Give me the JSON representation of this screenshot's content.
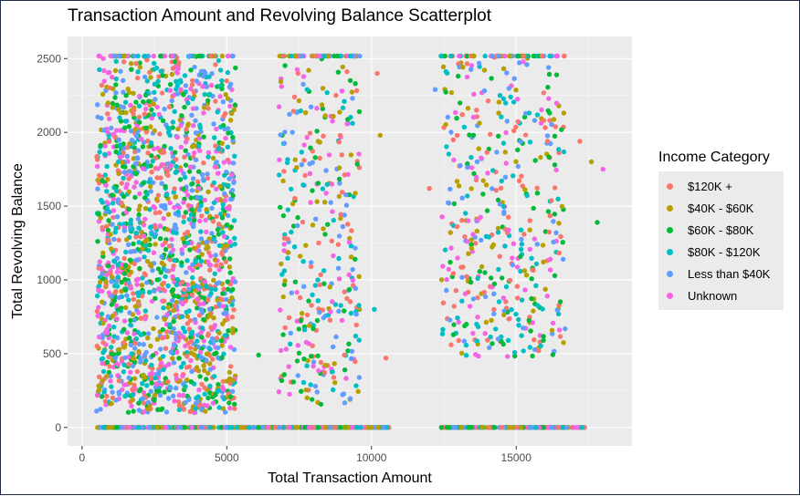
{
  "chart_data": {
    "type": "scatter",
    "title": "Transaction Amount and Revolving Balance Scatterplot",
    "xlabel": "Total Transaction Amount",
    "ylabel": "Total Revolving Balance",
    "xlim": [
      -500,
      19000
    ],
    "ylim": [
      -125,
      2650
    ],
    "x_ticks": [
      0,
      5000,
      10000,
      15000
    ],
    "y_ticks": [
      0,
      500,
      1000,
      1500,
      2000,
      2500
    ],
    "x_tick_labels": [
      "0",
      "5000",
      "10000",
      "15000"
    ],
    "y_tick_labels": [
      "0",
      "500",
      "1000",
      "1500",
      "2000",
      "2500"
    ],
    "grid": true,
    "legend": {
      "title": "Income Category",
      "position": "right"
    },
    "series": [
      {
        "name": "$120K +",
        "color": "#F8766D"
      },
      {
        "name": "$40K - $60K",
        "color": "#B79F00"
      },
      {
        "name": "$60K - $80K",
        "color": "#00BA38"
      },
      {
        "name": "$80K - $120K",
        "color": "#00BFC4"
      },
      {
        "name": "Less than $40K",
        "color": "#619CFF"
      },
      {
        "name": "Unknown",
        "color": "#F564E3"
      }
    ],
    "clusters": [
      {
        "x_range": [
          500,
          5300
        ],
        "y_range": [
          100,
          2516
        ],
        "points": 1800
      },
      {
        "x_range": [
          6800,
          9600
        ],
        "y_range": [
          150,
          2516
        ],
        "points": 330
      },
      {
        "x_range": [
          12400,
          16700
        ],
        "y_range": [
          480,
          2516
        ],
        "points": 430
      }
    ],
    "zero_balance_x_ranges": [
      [
        500,
        10600
      ],
      [
        12400,
        17400
      ]
    ],
    "max_balance": 2517,
    "outliers": [
      {
        "x": 17600,
        "y": 1800
      },
      {
        "x": 18000,
        "y": 1750
      },
      {
        "x": 17800,
        "y": 1390
      },
      {
        "x": 12200,
        "y": 2290
      },
      {
        "x": 10200,
        "y": 2400
      },
      {
        "x": 6100,
        "y": 490
      },
      {
        "x": 10300,
        "y": 1980
      },
      {
        "x": 10100,
        "y": 800
      },
      {
        "x": 10500,
        "y": 470
      },
      {
        "x": 12000,
        "y": 1620
      },
      {
        "x": 17200,
        "y": 1940
      }
    ]
  }
}
